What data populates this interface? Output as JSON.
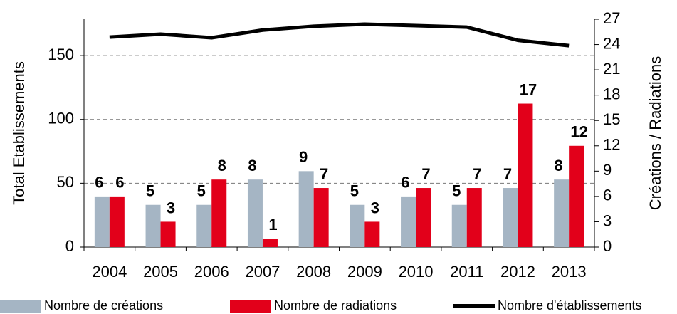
{
  "chart_data": {
    "type": "bar",
    "y_label": "Total Etablissements",
    "y2_label": "Créations / Radiations",
    "categories": [
      "2004",
      "2005",
      "2006",
      "2007",
      "2008",
      "2009",
      "2010",
      "2011",
      "2012",
      "2013"
    ],
    "series": [
      {
        "name": "Nombre de créations",
        "type": "bar",
        "axis": "y2",
        "color": "#a5b5c4",
        "values": [
          6,
          5,
          5,
          8,
          9,
          5,
          6,
          5,
          7,
          8
        ]
      },
      {
        "name": "Nombre de radiations",
        "type": "bar",
        "axis": "y2",
        "color": "#e2001a",
        "values": [
          6,
          3,
          8,
          1,
          7,
          3,
          7,
          7,
          17,
          12
        ]
      },
      {
        "name": "Nombre d'établissements",
        "type": "line",
        "color": "#000000",
        "values": [
          164.5,
          166.8,
          164,
          170,
          173,
          174.6,
          173.5,
          172.3,
          162,
          157.8
        ]
      }
    ],
    "ylim": [
      0,
      178.5
    ],
    "yticks": [
      0,
      50,
      100,
      150
    ],
    "y2lim": [
      0,
      27
    ],
    "y2ticks": [
      0,
      3,
      6,
      9,
      12,
      15,
      18,
      21,
      24,
      27
    ],
    "grid": true,
    "legend": "bottom"
  }
}
